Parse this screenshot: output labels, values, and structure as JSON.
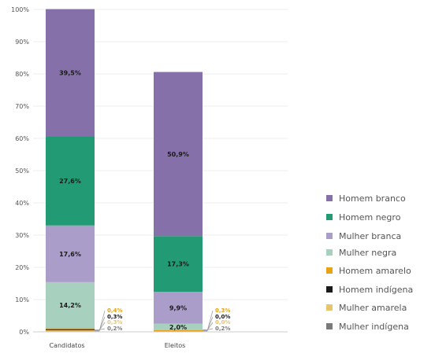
{
  "chart_data": {
    "type": "bar",
    "stacked": true,
    "normalized": true,
    "categories": [
      "Candidatos",
      "Eleitos"
    ],
    "ylim": [
      0,
      100
    ],
    "yticks": [
      "0%",
      "10%",
      "20%",
      "30%",
      "40%",
      "50%",
      "60%",
      "70%",
      "80%",
      "90%",
      "100%"
    ],
    "series": [
      {
        "name": "Mulher indígena",
        "color": "#7a7a7a",
        "values": [
          0.2,
          0.2
        ]
      },
      {
        "name": "Mulher amarela",
        "color": "#e8c56a",
        "values": [
          0.3,
          0.0
        ]
      },
      {
        "name": "Homem indígena",
        "color": "#1a1a1a",
        "values": [
          0.3,
          0.0
        ]
      },
      {
        "name": "Homem amarelo",
        "color": "#e8a317",
        "values": [
          0.4,
          0.3
        ]
      },
      {
        "name": "Mulher negra",
        "color": "#a8d0bf",
        "values": [
          14.2,
          2.0
        ]
      },
      {
        "name": "Mulher branca",
        "color": "#ab9dc9",
        "values": [
          17.6,
          9.9
        ]
      },
      {
        "name": "Homem negro",
        "color": "#229a73",
        "values": [
          27.6,
          17.3
        ]
      },
      {
        "name": "Homem branco",
        "color": "#8670a9",
        "values": [
          39.5,
          50.9
        ]
      }
    ],
    "data_labels": {
      "Candidatos": {
        "large": [
          {
            "series": "Mulher negra",
            "text": "14,2%"
          },
          {
            "series": "Mulher branca",
            "text": "17,6%"
          },
          {
            "series": "Homem negro",
            "text": "27,6%"
          },
          {
            "series": "Homem branco",
            "text": "39,5%"
          }
        ],
        "small": [
          {
            "series": "Homem amarelo",
            "text": "0,4%"
          },
          {
            "series": "Homem indígena",
            "text": "0,3%"
          },
          {
            "series": "Mulher amarela",
            "text": "0,3%"
          },
          {
            "series": "Mulher indígena",
            "text": "0,2%"
          }
        ]
      },
      "Eleitos": {
        "large": [
          {
            "series": "Mulher negra",
            "text": "2,0%"
          },
          {
            "series": "Mulher branca",
            "text": "9,9%"
          },
          {
            "series": "Homem negro",
            "text": "17,3%"
          },
          {
            "series": "Homem branco",
            "text": "50,9%"
          }
        ],
        "small": [
          {
            "series": "Homem amarelo",
            "text": "0,3%"
          },
          {
            "series": "Homem indígena",
            "text": "0,0%"
          },
          {
            "series": "Mulher amarela",
            "text": "0,0%"
          },
          {
            "series": "Mulher indígena",
            "text": "0,2%"
          }
        ]
      }
    },
    "legend": {
      "position": "right",
      "items": [
        "Homem branco",
        "Homem negro",
        "Mulher branca",
        "Mulher negra",
        "Homem amarelo",
        "Homem indígena",
        "Mulher amarela",
        "Mulher indígena"
      ]
    },
    "grid": true
  }
}
